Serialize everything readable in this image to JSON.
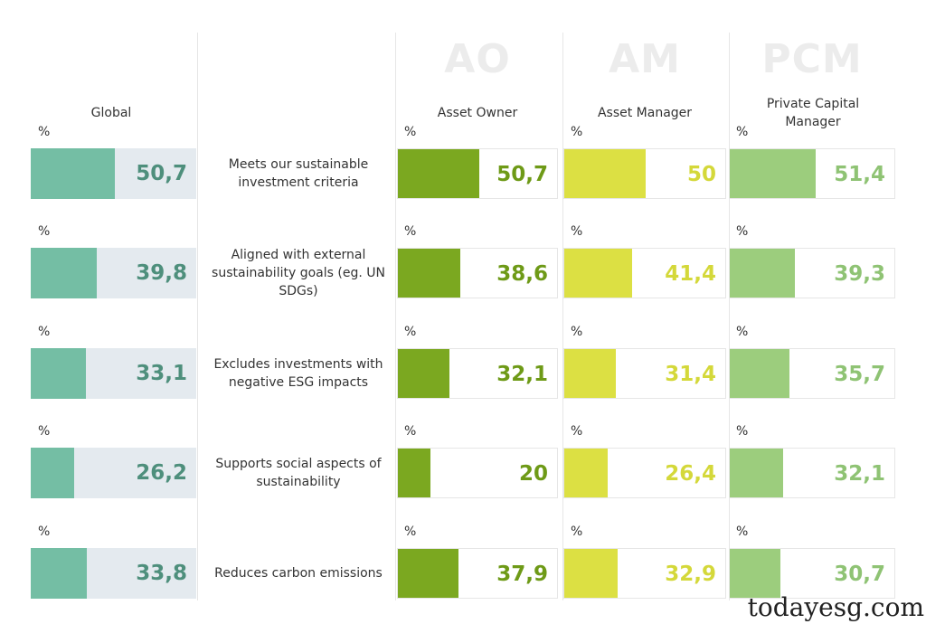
{
  "chart_data": {
    "type": "bar",
    "unit_label": "%",
    "categories": [
      "Meets our sustainable investment criteria",
      "Aligned with external sustainability goals (eg. UN SDGs)",
      "Excludes investments with negative ESG impacts",
      "Supports social aspects of sustainability",
      "Reduces carbon emissions"
    ],
    "series": [
      {
        "abbr": "",
        "name": "Global",
        "color": "#74bea4",
        "track": "#e4eaef",
        "text_color": "#4e8f7c",
        "values": [
          50.7,
          39.8,
          33.1,
          26.2,
          33.8
        ],
        "labels": [
          "50,7",
          "39,8",
          "33,1",
          "26,2",
          "33,8"
        ]
      },
      {
        "abbr": "AO",
        "name": "Asset Owner",
        "color": "#7ba820",
        "track": "#ffffff",
        "text_color": "#6e9a17",
        "values": [
          50.7,
          38.6,
          32.1,
          20,
          37.9
        ],
        "labels": [
          "50,7",
          "38,6",
          "32,1",
          "20",
          "37,9"
        ]
      },
      {
        "abbr": "AM",
        "name": "Asset Manager",
        "color": "#dce043",
        "track": "#ffffff",
        "text_color": "#d4d83a",
        "values": [
          50,
          41.4,
          31.4,
          26.4,
          32.9
        ],
        "labels": [
          "50",
          "41,4",
          "31,4",
          "26,4",
          "32,9"
        ]
      },
      {
        "abbr": "PCM",
        "name": "Private Capital Manager",
        "color": "#9ccd7d",
        "track": "#ffffff",
        "text_color": "#8fc374",
        "values": [
          51.4,
          39.3,
          35.7,
          32.1,
          30.7
        ],
        "labels": [
          "51,4",
          "39,3",
          "35,7",
          "32,1",
          "30,7"
        ]
      }
    ],
    "ylim": [
      0,
      100
    ]
  },
  "watermark": "todayesg.com"
}
